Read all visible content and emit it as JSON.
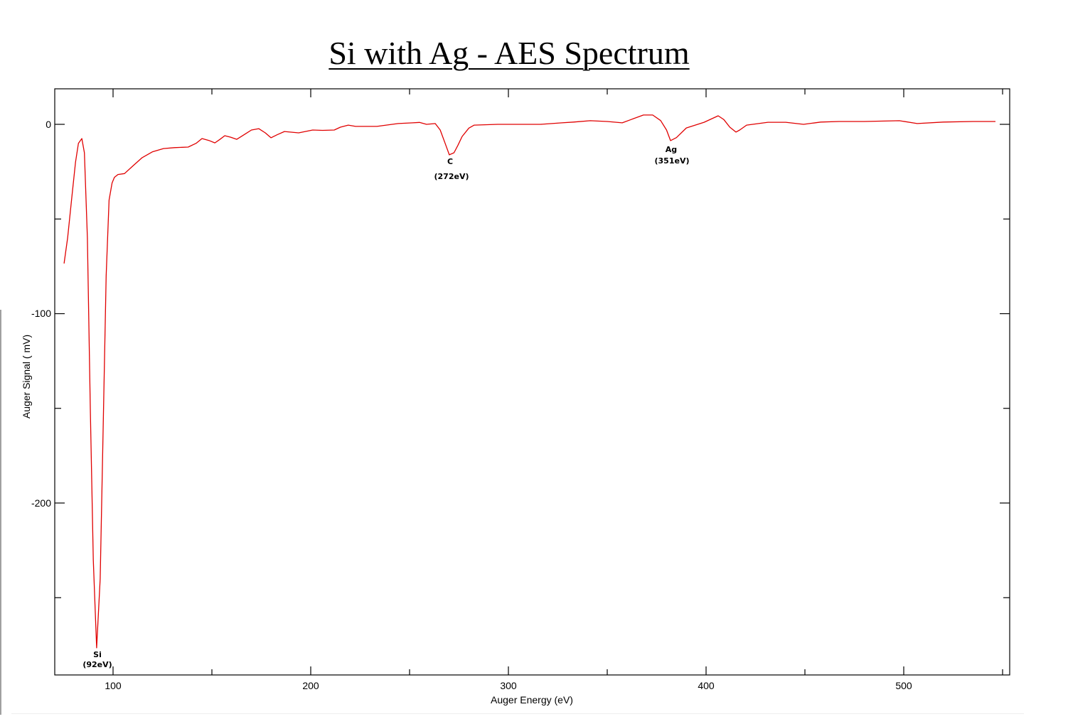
{
  "chart_data": {
    "type": "line",
    "title": "Si with Ag - AES Spectrum",
    "xlabel": "Auger Energy (eV)",
    "ylabel": "Auger Signal ( mV)",
    "xlim": [
      70.5,
      553.6
    ],
    "ylim": [
      -291,
      18.8
    ],
    "x_ticks_major": [
      100,
      200,
      300,
      400,
      500
    ],
    "x_ticks_minor": [
      150,
      250,
      350,
      450,
      550
    ],
    "y_ticks_major": [
      0,
      -100,
      -200
    ],
    "y_ticks_minor": [
      -50,
      -150,
      -250
    ],
    "grid": false,
    "legend": null,
    "series": [
      {
        "name": "AES Spectrum",
        "color": "#e00000",
        "x": [
          75.2,
          77,
          79,
          81,
          82.5,
          84.2,
          85.5,
          87,
          88.5,
          90,
          91.7,
          93.5,
          95,
          96.5,
          98,
          99.5,
          100.7,
          102.5,
          105.8,
          110,
          114.7,
          120,
          125.5,
          131,
          138,
          142,
          145,
          148.5,
          151.5,
          154,
          156.5,
          159.5,
          162.6,
          167,
          170,
          173.7,
          177,
          179.9,
          183,
          186.7,
          193.9,
          201,
          206,
          211.9,
          215,
          219,
          222.7,
          233.5,
          244.2,
          251.5,
          255,
          258.6,
          263,
          265.5,
          268,
          270.1,
          272.5,
          274.5,
          276.6,
          280,
          282.7,
          294.6,
          316.2,
          327,
          333,
          341.4,
          350,
          357.6,
          362,
          368.3,
          373,
          377,
          380,
          382,
          385,
          390,
          399,
          403,
          406.1,
          409,
          412,
          415.1,
          417,
          420.5,
          431.3,
          440.3,
          449.3,
          458,
          467.3,
          480,
          497.8,
          506.8,
          520,
          535,
          546.4
        ],
        "y": [
          -73.5,
          -60,
          -40,
          -20,
          -10,
          -7.5,
          -15,
          -60,
          -150,
          -230,
          -276.5,
          -240,
          -160,
          -80,
          -40,
          -31,
          -28,
          -26.5,
          -26,
          -22,
          -17.6,
          -14.5,
          -12.8,
          -12.3,
          -12,
          -10,
          -7.5,
          -8.5,
          -9.8,
          -8,
          -6,
          -6.8,
          -7.9,
          -5,
          -3,
          -2.3,
          -4.5,
          -7.1,
          -5.5,
          -3.8,
          -4.5,
          -3,
          -3.2,
          -3,
          -1.5,
          -0.4,
          -1.1,
          -1.1,
          0.4,
          0.8,
          1,
          0,
          0.4,
          -3,
          -10,
          -16.1,
          -15,
          -11,
          -6.4,
          -2,
          -0.4,
          0,
          0,
          0.8,
          1.2,
          1.9,
          1.5,
          0.8,
          2.5,
          4.9,
          4.9,
          2,
          -3,
          -8.6,
          -7,
          -1.9,
          1.1,
          3,
          4.5,
          2.5,
          -1.5,
          -4.1,
          -3,
          -0.4,
          1.1,
          1.1,
          0,
          1.2,
          1.5,
          1.5,
          1.9,
          0.4,
          1.2,
          1.5,
          1.5
        ]
      }
    ],
    "annotations": [
      {
        "label": "Si",
        "sublabel": "(92eV)",
        "x": 91.7,
        "y": -276.5
      },
      {
        "label": "C",
        "sublabel": "(272eV)",
        "x": 270.1,
        "y": -16.1
      },
      {
        "label": "Ag",
        "sublabel": "(351eV)",
        "x": 382,
        "y": -8.6
      }
    ]
  },
  "title": "Si with Ag - AES Spectrum",
  "axes": {
    "xlabel": "Auger Energy (eV)",
    "ylabel": "Auger Signal ( mV)",
    "x_tick_labels": [
      "100",
      "200",
      "300",
      "400",
      "500"
    ],
    "y_tick_labels": [
      "0",
      "-100",
      "-200"
    ]
  },
  "annotations": {
    "si": {
      "label": "Si",
      "energy": "(92eV)"
    },
    "c": {
      "label": "C",
      "energy": "(272eV)"
    },
    "ag": {
      "label": "Ag",
      "energy": "(351eV)"
    }
  },
  "colors": {
    "line": "#e00000",
    "axis": "#000000"
  }
}
